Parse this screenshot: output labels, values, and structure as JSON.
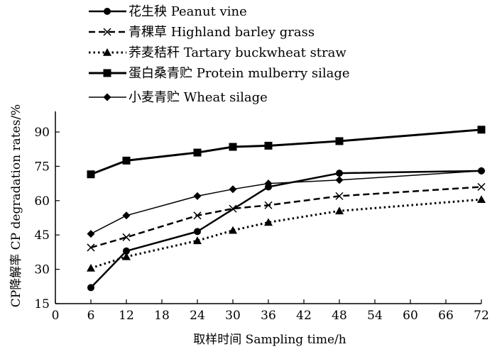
{
  "chart_data": {
    "type": "line",
    "title": "",
    "xlabel": "取样时间  Sampling time/h",
    "ylabel": "CP降解率  CP degradation rates/%",
    "xlim": [
      0,
      72
    ],
    "ylim": [
      15,
      99
    ],
    "xticks": [
      0,
      6,
      12,
      18,
      24,
      30,
      36,
      42,
      48,
      54,
      60,
      66,
      72
    ],
    "yticks": [
      15,
      30,
      45,
      60,
      75,
      90
    ],
    "grid": false,
    "legend_position": "top-left",
    "series": [
      {
        "name": "花生秧 Peanut vine",
        "line_style": "solid",
        "marker": "circle",
        "stroke_width": 2.5,
        "x": [
          6,
          12,
          24,
          36,
          48,
          72
        ],
        "y": [
          22,
          38,
          46.5,
          66,
          72,
          73
        ]
      },
      {
        "name": "青稞草 Highland barley grass",
        "line_style": "dashed",
        "marker": "x",
        "stroke_width": 2.5,
        "x": [
          6,
          12,
          24,
          30,
          36,
          48,
          72
        ],
        "y": [
          39.5,
          44,
          53.5,
          56.5,
          58,
          62,
          66
        ]
      },
      {
        "name": "荞麦秸秆 Tartary buckwheat straw",
        "line_style": "dotted",
        "marker": "triangle",
        "stroke_width": 3,
        "x": [
          6,
          12,
          24,
          30,
          36,
          48,
          72
        ],
        "y": [
          30.5,
          35.5,
          42.5,
          47,
          50.5,
          55.5,
          60.5
        ]
      },
      {
        "name": "蛋白桑青贮 Protein mulberry silage",
        "line_style": "solid",
        "marker": "square",
        "stroke_width": 3,
        "x": [
          6,
          12,
          24,
          30,
          36,
          48,
          72
        ],
        "y": [
          71.5,
          77.5,
          81,
          83.5,
          84,
          86,
          91
        ]
      },
      {
        "name": "小麦青贮  Wheat silage",
        "line_style": "solid",
        "marker": "diamond",
        "stroke_width": 1.5,
        "x": [
          6,
          12,
          24,
          30,
          36,
          48,
          72
        ],
        "y": [
          45.5,
          53.5,
          62,
          65,
          67.5,
          69,
          73
        ]
      }
    ]
  }
}
